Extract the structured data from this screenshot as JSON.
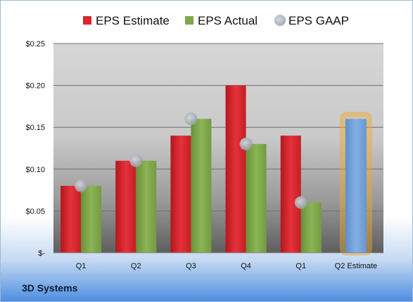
{
  "chart_data": {
    "type": "bar",
    "categories": [
      "Q1",
      "Q2",
      "Q3",
      "Q4",
      "Q1",
      "Q2 Estimate"
    ],
    "series": [
      {
        "name": "EPS Estimate",
        "type": "bar",
        "color": "#d9252b",
        "values": [
          0.08,
          0.11,
          0.14,
          0.2,
          0.14,
          null
        ]
      },
      {
        "name": "EPS Actual",
        "type": "bar",
        "color": "#7ea64a",
        "values": [
          0.08,
          0.11,
          0.16,
          0.13,
          0.06,
          null
        ]
      },
      {
        "name": "EPS GAAP",
        "type": "scatter",
        "color": "#b8bcc4",
        "values": [
          0.08,
          0.11,
          0.16,
          0.13,
          0.06,
          null
        ]
      }
    ],
    "forecast": {
      "category": "Q2 Estimate",
      "value": 0.16,
      "color": "#6f9fd8",
      "glow": "#f5a623"
    },
    "ylim": [
      0,
      0.25
    ],
    "yticks": [
      0,
      0.05,
      0.1,
      0.15,
      0.2,
      0.25
    ],
    "ytick_labels": [
      "$-",
      "$0.05",
      "$0.10",
      "$0.15",
      "$0.20",
      "$0.25"
    ],
    "legend": [
      "EPS Estimate",
      "EPS Actual",
      "EPS GAAP"
    ],
    "legend_position": "top",
    "grid": true
  },
  "company": "3D Systems"
}
